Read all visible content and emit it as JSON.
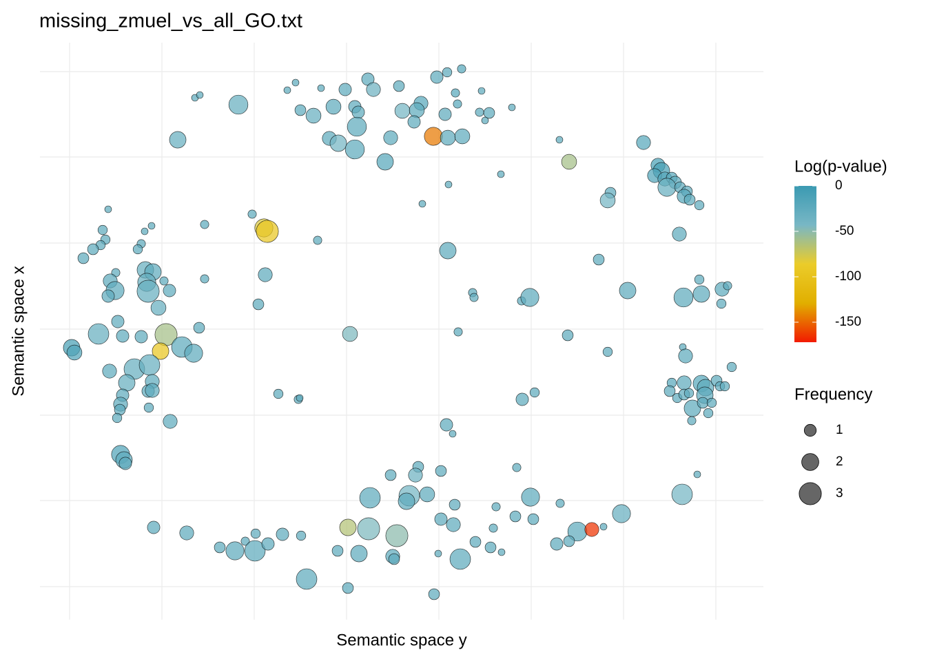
{
  "chart_data": {
    "type": "scatter",
    "title": "missing_zmuel_vs_all_GO.txt",
    "x_label": "Semantic space y",
    "y_label": "Semantic space x",
    "xlim": [
      58,
      1108
    ],
    "ylim": [
      60,
      898
    ],
    "xticks": [
      101,
      235,
      369,
      503,
      637,
      771,
      905,
      1039
    ],
    "yticks": [
      108,
      233,
      357,
      482,
      607,
      732,
      856
    ],
    "grid": true,
    "points": {
      "x": [
        534,
        429,
        417,
        466,
        501,
        542,
        579,
        634,
        649,
        670,
        699,
        661,
        283,
        290,
        346,
        436,
        455,
        484,
        515,
        520,
        584,
        611,
        605,
        601,
        646,
        664,
        696,
        710,
        704,
        743,
        518,
        478,
        491,
        515,
        567,
        629,
        650,
        671,
        559,
        258,
        812,
        826,
        934,
        955,
        960,
        950,
        965,
        975,
        980,
        968,
        987,
        997,
        993,
        1001,
        1015,
        886,
        882,
        727,
        651,
        613,
        986,
        157,
        149,
        220,
        210,
        153,
        146,
        135,
        205,
        200,
        121,
        297,
        366,
        383,
        388,
        461,
        650,
        869,
        211,
        222,
        168,
        160,
        167,
        157,
        213,
        215,
        238,
        246,
        230,
        297,
        385,
        375,
        911,
        1015,
        1018,
        992,
        1048,
        1056,
        1047,
        686,
        688,
        757,
        769,
        171,
        143,
        178,
        205,
        241,
        289,
        264,
        281,
        233,
        508,
        665,
        824,
        882,
        104,
        108,
        991,
        995,
        159,
        195,
        217,
        221,
        184,
        215,
        221,
        178,
        175,
        174,
        216,
        170,
        247,
        404,
        433,
        435,
        758,
        776,
        1062,
        975,
        993,
        1018,
        1024,
        1040,
        1045,
        1052,
        1023,
        972,
        983,
        993,
        1000,
        1005,
        1020,
        1033,
        1028,
        1004,
        648,
        657,
        175,
        180,
        182,
        607,
        603,
        640,
        567,
        750,
        1012,
        537,
        594,
        620,
        590,
        770,
        660,
        720,
        813,
        990,
        902,
        640,
        658,
        748,
        774,
        716,
        223,
        271,
        505,
        535,
        576,
        410,
        437,
        371,
        356,
        319,
        341,
        370,
        389,
        838,
        859,
        876,
        826,
        808,
        690,
        712,
        728,
        490,
        521,
        570,
        572,
        636,
        668,
        445,
        505,
        630
      ],
      "y": [
        845,
        840,
        829,
        832,
        830,
        830,
        835,
        848,
        855,
        860,
        828,
        825,
        818,
        822,
        808,
        800,
        792,
        805,
        805,
        797,
        799,
        810,
        800,
        783,
        794,
        809,
        797,
        796,
        785,
        804,
        776,
        759,
        752,
        743,
        760,
        762,
        760,
        762,
        725,
        757,
        757,
        725,
        753,
        720,
        712,
        705,
        700,
        702,
        695,
        688,
        688,
        682,
        675,
        670,
        662,
        680,
        669,
        707,
        692,
        664,
        620,
        656,
        626,
        632,
        624,
        612,
        604,
        598,
        606,
        598,
        585,
        634,
        649,
        629,
        624,
        611,
        596,
        583,
        568,
        565,
        564,
        552,
        538,
        530,
        550,
        537,
        552,
        538,
        513,
        555,
        561,
        518,
        538,
        554,
        533,
        528,
        540,
        545,
        519,
        535,
        528,
        523,
        528,
        493,
        475,
        472,
        471,
        474,
        484,
        456,
        447,
        450,
        475,
        478,
        473,
        449,
        455,
        448,
        456,
        443,
        421,
        424,
        430,
        406,
        404,
        392,
        393,
        386,
        373,
        365,
        368,
        353,
        348,
        388,
        380,
        382,
        380,
        390,
        427,
        404,
        404,
        403,
        397,
        407,
        399,
        399,
        386,
        392,
        382,
        387,
        389,
        367,
        375,
        375,
        360,
        349,
        343,
        330,
        300,
        292,
        287,
        282,
        270,
        276,
        270,
        281,
        271,
        237,
        240,
        242,
        232,
        238,
        227,
        224,
        229,
        242,
        214,
        206,
        198,
        210,
        206,
        193,
        194,
        186,
        194,
        192,
        182,
        184,
        182,
        185,
        174,
        165,
        160,
        160,
        170,
        188,
        191,
        195,
        174,
        170,
        173,
        165,
        158,
        160,
        156,
        152,
        148,
        156,
        148,
        119,
        106,
        97
      ],
      "frequency": [
        1.1,
        0,
        0,
        0,
        1.1,
        1.4,
        0.8,
        1.1,
        0.5,
        0.3,
        0,
        0.3,
        0,
        0,
        2.4,
        0.8,
        1.6,
        1.6,
        1.1,
        1.1,
        1.6,
        1.4,
        1.6,
        1.1,
        1.1,
        0.3,
        0.3,
        0.8,
        0,
        0,
        2.4,
        1.4,
        1.9,
        2.4,
        1.4,
        2.2,
        1.6,
        1.6,
        1.9,
        1.9,
        0,
        1.6,
        1.4,
        1.4,
        1.9,
        1.4,
        1.4,
        0.8,
        1.1,
        2.2,
        0.8,
        0.8,
        1.4,
        0.8,
        0.5,
        0.8,
        1.6,
        0,
        0,
        0,
        1.4,
        0,
        0.5,
        0,
        0,
        0.5,
        0.5,
        0.8,
        0.3,
        0.5,
        0.8,
        0.3,
        0.3,
        2.2,
        3,
        0.3,
        1.9,
        0.8,
        1.9,
        1.9,
        0.3,
        1.4,
        2.2,
        1.1,
        2.2,
        3,
        0.3,
        1.1,
        1.6,
        0.3,
        1.4,
        0.8,
        1.9,
        0.5,
        1.9,
        2.4,
        1.4,
        0.3,
        0.5,
        0.3,
        0.3,
        0.3,
        2.2,
        1.1,
        2.7,
        1.1,
        1.1,
        3,
        0.8,
        2.7,
        2.2,
        1.9,
        1.6,
        0.3,
        0.8,
        0.5,
        1.9,
        1.6,
        0,
        1.4,
        1.4,
        2.7,
        2.7,
        1.4,
        1.9,
        1.1,
        1.4,
        1.1,
        1.4,
        0.8,
        0.5,
        0.5,
        1.4,
        0.5,
        0.3,
        0,
        1.1,
        0.5,
        0.5,
        0.5,
        1.4,
        1.9,
        1.9,
        0.8,
        0.5,
        0.5,
        1.9,
        0.8,
        0.5,
        0.8,
        0.5,
        1.9,
        0.8,
        0.5,
        0.5,
        0.3,
        1.1,
        0,
        2.2,
        1.9,
        1.1,
        0.8,
        1.4,
        0.8,
        0.8,
        0.3,
        0,
        2.7,
        2.7,
        1.6,
        1.9,
        2.2,
        0.8,
        0.3,
        0.3,
        2.7,
        2.2,
        1.1,
        1.4,
        0.8,
        0.8,
        0.3,
        1.1,
        1.4,
        1.9,
        3,
        3,
        1.1,
        0.5,
        0.5,
        0.3,
        0.8,
        2.2,
        2.7,
        1.1,
        2.4,
        1.4,
        0,
        0.8,
        1.1,
        0.8,
        0.8,
        0,
        0.8,
        1.9,
        1.4,
        0.8,
        0,
        2.7,
        2.7,
        0.8,
        0.8
      ],
      "log_p": [
        -25,
        -25,
        -25,
        -25,
        -25,
        -35,
        -25,
        -25,
        -25,
        -20,
        -25,
        -20,
        -25,
        -25,
        -30,
        -25,
        -30,
        -25,
        -25,
        -25,
        -40,
        -20,
        -25,
        -25,
        -25,
        -20,
        -25,
        -25,
        -25,
        -25,
        -25,
        -25,
        -40,
        -25,
        -25,
        -145,
        -25,
        -25,
        -20,
        -30,
        -25,
        -60,
        -20,
        -10,
        -10,
        -15,
        -20,
        -20,
        -25,
        -30,
        -25,
        -25,
        -20,
        -25,
        -25,
        -25,
        -40,
        -25,
        -25,
        -25,
        -25,
        -25,
        -25,
        -25,
        -25,
        -25,
        -25,
        -25,
        -25,
        -25,
        -25,
        -25,
        -25,
        -80,
        -95,
        -25,
        -25,
        -25,
        -30,
        -25,
        -25,
        -25,
        -25,
        -25,
        -30,
        -30,
        -25,
        -25,
        -30,
        -25,
        -25,
        -25,
        -25,
        -25,
        -25,
        -25,
        -25,
        -25,
        -25,
        -25,
        -25,
        -25,
        -25,
        -25,
        -30,
        -25,
        -25,
        -60,
        -25,
        -25,
        -25,
        -95,
        -45,
        -25,
        -25,
        -25,
        -10,
        -15,
        -25,
        -25,
        -25,
        -30,
        -30,
        -25,
        -30,
        -25,
        -25,
        -25,
        -25,
        -25,
        -25,
        -25,
        -25,
        -25,
        -25,
        -25,
        -25,
        -25,
        -25,
        -20,
        -25,
        -20,
        -25,
        -25,
        -25,
        -25,
        -25,
        -25,
        -25,
        -25,
        -25,
        -25,
        -25,
        -25,
        -25,
        -25,
        -25,
        -25,
        -15,
        -25,
        -25,
        -25,
        -35,
        -25,
        -25,
        -25,
        -25,
        -25,
        -40,
        -25,
        -25,
        -25,
        -25,
        -25,
        -25,
        -40,
        -30,
        -25,
        -25,
        -25,
        -25,
        -25,
        -25,
        -25,
        -65,
        -45,
        -50,
        -25,
        -25,
        -25,
        -25,
        -25,
        -25,
        -25,
        -25,
        -25,
        -165,
        -25,
        -25,
        -25,
        -25,
        -25,
        -25,
        -25,
        -25,
        -25,
        -25,
        -25,
        -25,
        -25,
        -25,
        -25
      ]
    },
    "color_legend": {
      "title": "Log(p-value)",
      "lim": [
        -172,
        0
      ],
      "ticks": [
        0,
        -50,
        -100,
        -150
      ],
      "colors": [
        "#3b9ab2",
        "#78b7c5",
        "#ebcc2a",
        "#e1af00",
        "#f21a00"
      ]
    },
    "size_legend": {
      "title": "Frequency",
      "values": [
        1,
        2,
        3
      ]
    }
  }
}
